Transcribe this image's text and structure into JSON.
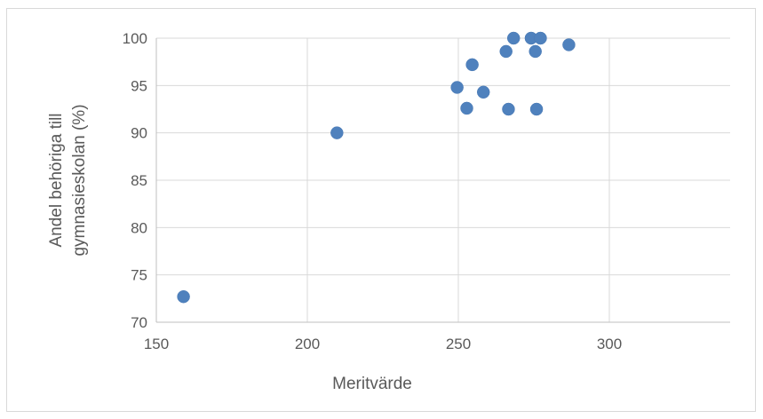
{
  "chart_data": {
    "type": "scatter",
    "title": "",
    "xlabel": "Meritvärde",
    "ylabel_lines": [
      "Andel behöriga till",
      "gymnasieskolan (%)"
    ],
    "xlim": [
      150,
      340
    ],
    "ylim": [
      70,
      100
    ],
    "x_ticks": [
      "150",
      "200",
      "250",
      "300"
    ],
    "y_ticks": [
      "70",
      "75",
      "80",
      "85",
      "90",
      "95",
      "100"
    ],
    "grid": true,
    "legend": "none",
    "marker_color": "#4f81bd",
    "points": [
      {
        "x": 159.0,
        "y": 72.7
      },
      {
        "x": 209.8,
        "y": 90.0
      },
      {
        "x": 249.6,
        "y": 94.8
      },
      {
        "x": 252.8,
        "y": 92.6
      },
      {
        "x": 254.6,
        "y": 97.2
      },
      {
        "x": 258.3,
        "y": 94.3
      },
      {
        "x": 265.8,
        "y": 98.6
      },
      {
        "x": 266.6,
        "y": 92.5
      },
      {
        "x": 268.3,
        "y": 100.0
      },
      {
        "x": 274.1,
        "y": 100.0
      },
      {
        "x": 275.5,
        "y": 98.6
      },
      {
        "x": 275.9,
        "y": 92.5
      },
      {
        "x": 277.2,
        "y": 100.0
      },
      {
        "x": 286.6,
        "y": 99.3
      }
    ]
  }
}
